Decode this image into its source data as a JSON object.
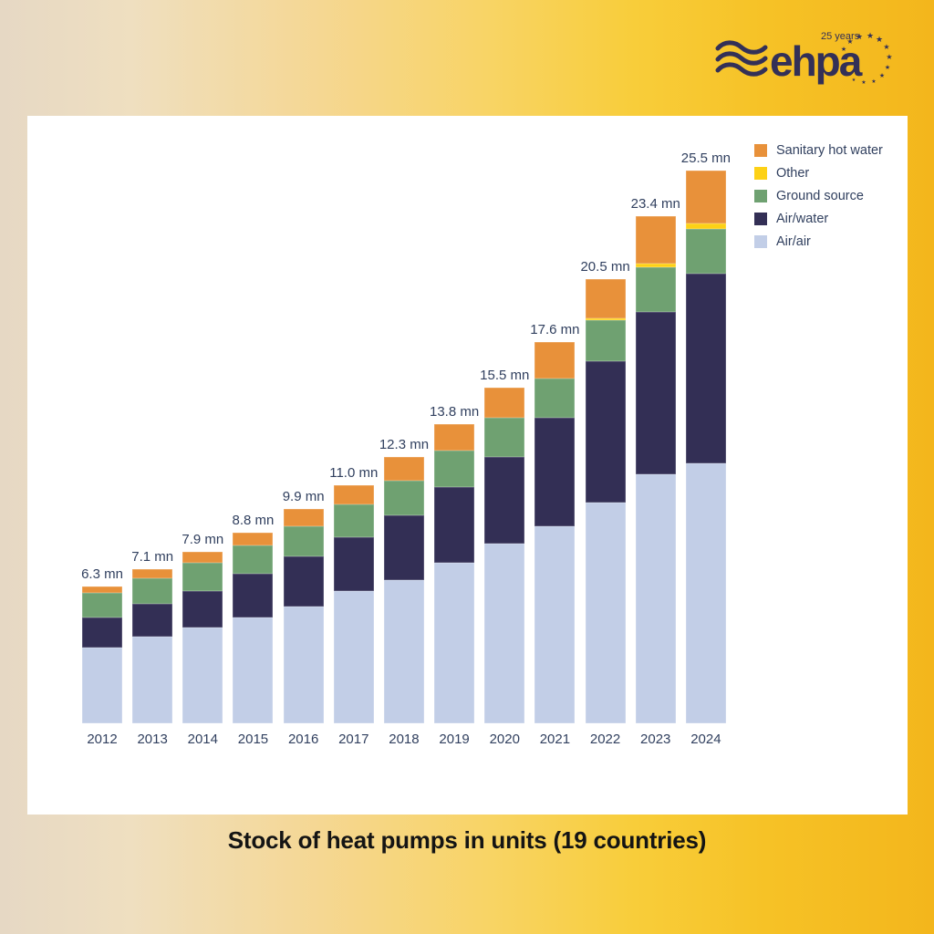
{
  "logo": {
    "brand": "ehpa",
    "anniversary": "25 years"
  },
  "title": "Stock of heat pumps in units (19 countries)",
  "legend": [
    {
      "label": "Sanitary hot water",
      "color": "#e8913a"
    },
    {
      "label": "Other",
      "color": "#fdd116"
    },
    {
      "label": "Ground source",
      "color": "#6fa171"
    },
    {
      "label": "Air/water",
      "color": "#332f55"
    },
    {
      "label": "Air/air",
      "color": "#c2cee7"
    }
  ],
  "chart_data": {
    "type": "bar",
    "stacked": true,
    "unit": "mn",
    "title": "Stock of heat pumps in units (19 countries)",
    "categories": [
      "2012",
      "2013",
      "2014",
      "2015",
      "2016",
      "2017",
      "2018",
      "2019",
      "2020",
      "2021",
      "2022",
      "2023",
      "2024"
    ],
    "totals": [
      6.3,
      7.1,
      7.9,
      8.8,
      9.9,
      11.0,
      12.3,
      13.8,
      15.5,
      17.6,
      20.5,
      23.4,
      25.5
    ],
    "totals_labels": [
      "6.3 mn",
      "7.1 mn",
      "7.9 mn",
      "8.8 mn",
      "9.9 mn",
      "11.0 mn",
      "12.3 mn",
      "13.8 mn",
      "15.5 mn",
      "17.6 mn",
      "20.5 mn",
      "23.4 mn",
      "25.5 mn"
    ],
    "series": [
      {
        "name": "Air/air",
        "color": "#c2cee7",
        "values": [
          3.5,
          4.0,
          4.4,
          4.9,
          5.4,
          6.1,
          6.6,
          7.4,
          8.3,
          9.1,
          10.2,
          11.5,
          12.0
        ]
      },
      {
        "name": "Air/water",
        "color": "#332f55",
        "values": [
          1.4,
          1.5,
          1.7,
          2.0,
          2.3,
          2.5,
          3.0,
          3.5,
          4.0,
          5.0,
          6.5,
          7.5,
          8.75
        ]
      },
      {
        "name": "Ground source",
        "color": "#6fa171",
        "values": [
          1.1,
          1.2,
          1.3,
          1.3,
          1.4,
          1.5,
          1.6,
          1.7,
          1.8,
          1.8,
          1.9,
          2.05,
          2.05
        ]
      },
      {
        "name": "Other",
        "color": "#fdd116",
        "values": [
          0,
          0,
          0,
          0,
          0,
          0,
          0,
          0,
          0,
          0,
          0.1,
          0.15,
          0.25
        ]
      },
      {
        "name": "Sanitary hot water",
        "color": "#e8913a",
        "values": [
          0.3,
          0.4,
          0.5,
          0.6,
          0.8,
          0.9,
          1.1,
          1.2,
          1.4,
          1.7,
          1.8,
          2.2,
          2.45
        ]
      }
    ],
    "ylim": [
      0,
      26
    ],
    "grid": false,
    "legend_position": "top-right",
    "value_label_suffix": " mn"
  },
  "colors": {
    "panel": "#ffffff",
    "axis_text": "#31405f",
    "title_text": "#141414",
    "logo_navy": "#333057",
    "background_left": "#e6d8c4",
    "background_right": "#f3b61c"
  }
}
